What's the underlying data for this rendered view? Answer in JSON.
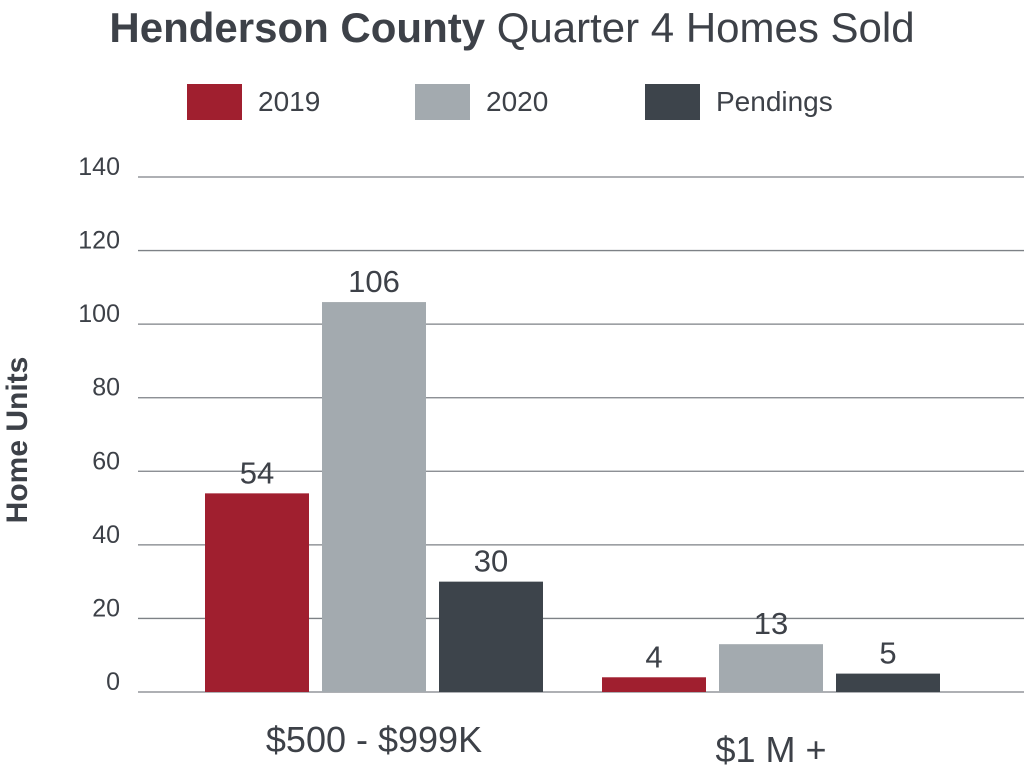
{
  "chart_data": {
    "type": "bar",
    "title_bold": "Henderson County",
    "title_rest": "Quarter 4 Homes Sold",
    "ylabel": "Home Units",
    "xlabel": "",
    "ylim": [
      0,
      140
    ],
    "yticks": [
      0,
      20,
      40,
      60,
      80,
      100,
      120,
      140
    ],
    "grid": true,
    "legend_position": "top",
    "categories": [
      "$500 - $999K",
      "$1 M +"
    ],
    "series": [
      {
        "name": "2019",
        "color": "#a01f2f",
        "values": [
          54,
          4
        ]
      },
      {
        "name": "2020",
        "color": "#a3aaaf",
        "values": [
          106,
          13
        ]
      },
      {
        "name": "Pendings",
        "color": "#3d444b",
        "values": [
          30,
          5
        ]
      }
    ]
  }
}
